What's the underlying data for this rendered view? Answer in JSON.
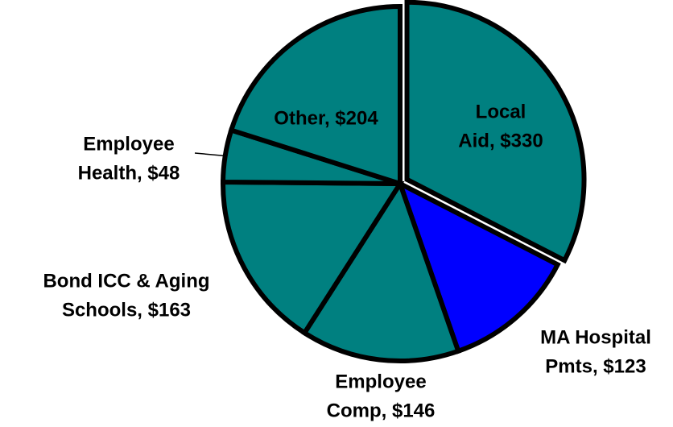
{
  "chart_data": {
    "type": "pie",
    "values": [
      330,
      123,
      146,
      163,
      48,
      204
    ],
    "value_labels": [
      [
        "Local",
        "Aid, $330"
      ],
      [
        "MA Hospital",
        "Pmts, $123"
      ],
      [
        "Employee",
        "Comp, $146"
      ],
      [
        "Bond ICC & Aging",
        "Schools, $163"
      ],
      [
        "Employee",
        "Health, $48"
      ],
      [
        "Other, $204"
      ]
    ],
    "colors": [
      "#008080",
      "#0000ff",
      "#008080",
      "#008080",
      "#008080",
      "#008080"
    ]
  }
}
